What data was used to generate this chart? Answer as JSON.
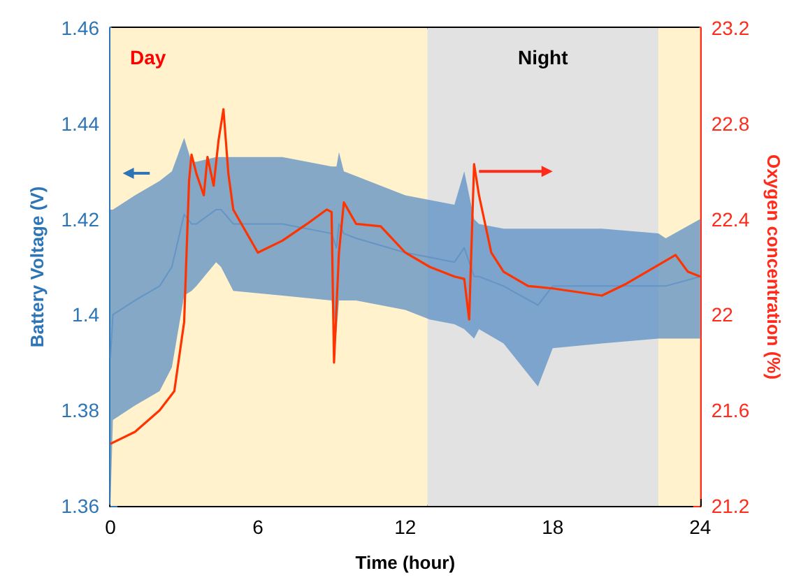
{
  "chart_data": {
    "type": "line",
    "xlabel": "Time (hour)",
    "ylabel": "Battery Voltage (V)",
    "y2label": "Oxygen concentration (%)",
    "xlim": [
      0,
      24
    ],
    "xticks": [
      0,
      6,
      12,
      18,
      24
    ],
    "ylim": [
      1.36,
      1.46
    ],
    "yticks": [
      1.36,
      1.38,
      1.4,
      1.42,
      1.44,
      1.46
    ],
    "y2lim": [
      21.2,
      23.2
    ],
    "y2ticks": [
      21.2,
      21.6,
      22,
      22.4,
      22.8,
      23.2
    ],
    "grid": false,
    "marker": "none",
    "line_style": "solid",
    "bands": [
      {
        "axis": "x",
        "from": 0,
        "to": 12.9,
        "label": "Day",
        "color": "#fff2cc"
      },
      {
        "axis": "x",
        "from": 12.9,
        "to": 22.3,
        "label": "Night",
        "color": "#e2e2e2"
      },
      {
        "axis": "x",
        "from": 22.3,
        "to": 24,
        "color": "#fff2cc"
      }
    ],
    "series": [
      {
        "type": "line",
        "color": "#5b8fc4",
        "x": [
          0,
          0.1,
          1,
          2,
          2.5,
          3,
          3.3,
          3.5,
          4.3,
          4.5,
          5,
          7,
          9,
          9.2,
          9.3,
          9.5,
          10,
          12,
          13,
          14,
          14.4,
          14.8,
          15,
          16,
          17.4,
          18,
          20,
          22.3,
          22.6,
          24
        ],
        "values": [
          1.391,
          1.4,
          1.403,
          1.406,
          1.41,
          1.421,
          1.419,
          1.419,
          1.422,
          1.422,
          1.419,
          1.419,
          1.417,
          1.414,
          1.419,
          1.417,
          1.416,
          1.413,
          1.412,
          1.411,
          1.414,
          1.408,
          1.408,
          1.406,
          1.402,
          1.406,
          1.406,
          1.406,
          1.406,
          1.408
        ],
        "upper": [
          1.422,
          1.422,
          1.425,
          1.428,
          1.43,
          1.437,
          1.432,
          1.432,
          1.433,
          1.433,
          1.433,
          1.433,
          1.431,
          1.431,
          1.434,
          1.43,
          1.429,
          1.425,
          1.424,
          1.423,
          1.43,
          1.42,
          1.419,
          1.418,
          1.418,
          1.418,
          1.418,
          1.417,
          1.416,
          1.42
        ],
        "lower": [
          1.36,
          1.378,
          1.381,
          1.384,
          1.389,
          1.404,
          1.405,
          1.406,
          1.411,
          1.41,
          1.405,
          1.404,
          1.403,
          1.396,
          1.403,
          1.403,
          1.403,
          1.401,
          1.399,
          1.398,
          1.397,
          1.395,
          1.397,
          1.394,
          1.385,
          1.393,
          1.394,
          1.395,
          1.395,
          1.395
        ]
      },
      {
        "axis": "y2",
        "color": "#ff3300",
        "x": [
          0,
          1,
          2,
          2.6,
          3,
          3.2,
          3.3,
          3.5,
          3.8,
          3.95,
          4.2,
          4.4,
          4.6,
          4.8,
          5,
          5.5,
          6,
          7,
          8,
          8.8,
          9,
          9.1,
          9.3,
          9.5,
          10,
          11,
          12,
          13,
          14,
          14.4,
          14.6,
          14.8,
          15,
          15.5,
          16,
          17,
          18,
          20,
          21,
          22,
          23,
          23.5,
          24
        ],
        "values": [
          21.46,
          21.51,
          21.6,
          21.68,
          21.97,
          22.56,
          22.67,
          22.59,
          22.5,
          22.66,
          22.54,
          22.73,
          22.86,
          22.59,
          22.44,
          22.35,
          22.26,
          22.31,
          22.38,
          22.44,
          22.43,
          21.8,
          22.26,
          22.47,
          22.38,
          22.37,
          22.26,
          22.2,
          22.16,
          22.15,
          21.98,
          22.63,
          22.5,
          22.26,
          22.18,
          22.12,
          22.11,
          22.08,
          22.13,
          22.19,
          22.25,
          22.18,
          22.16
        ]
      }
    ]
  }
}
